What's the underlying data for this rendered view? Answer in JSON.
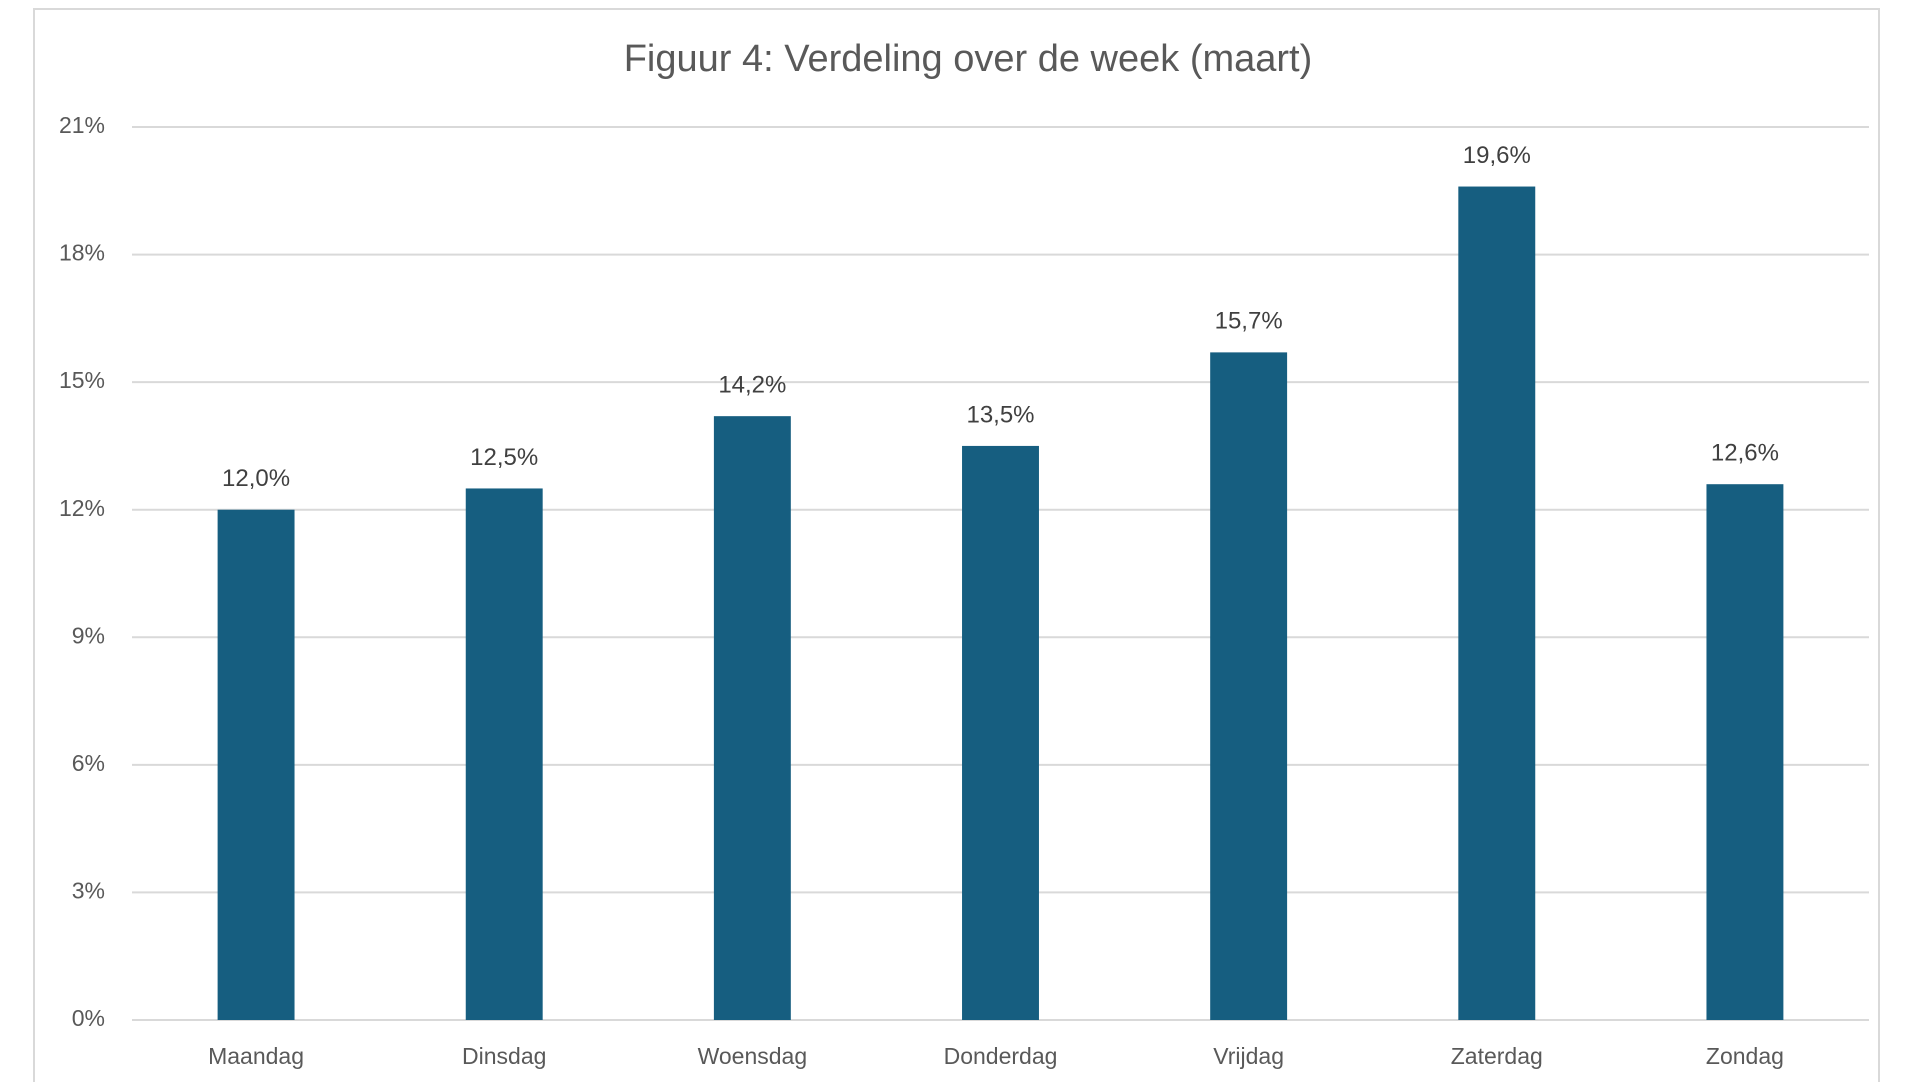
{
  "chart_data": {
    "type": "bar",
    "title": "Figuur 4: Verdeling over de week (maart)",
    "categories": [
      "Maandag",
      "Dinsdag",
      "Woensdag",
      "Donderdag",
      "Vrijdag",
      "Zaterdag",
      "Zondag"
    ],
    "values": [
      12.0,
      12.5,
      14.2,
      13.5,
      15.7,
      19.6,
      12.6
    ],
    "value_labels": [
      "12,0%",
      "12,5%",
      "14,2%",
      "13,5%",
      "15,7%",
      "19,6%",
      "12,6%"
    ],
    "color": "#165e80",
    "ylim": [
      0,
      21
    ],
    "yticks": [
      {
        "value": 0,
        "label": "0%"
      },
      {
        "value": 3,
        "label": "3%"
      },
      {
        "value": 6,
        "label": "6%"
      },
      {
        "value": 9,
        "label": "9%"
      },
      {
        "value": 12,
        "label": "12%"
      },
      {
        "value": 15,
        "label": "15%"
      },
      {
        "value": 18,
        "label": "18%"
      },
      {
        "value": 21,
        "label": "21%"
      }
    ],
    "grid": true
  }
}
